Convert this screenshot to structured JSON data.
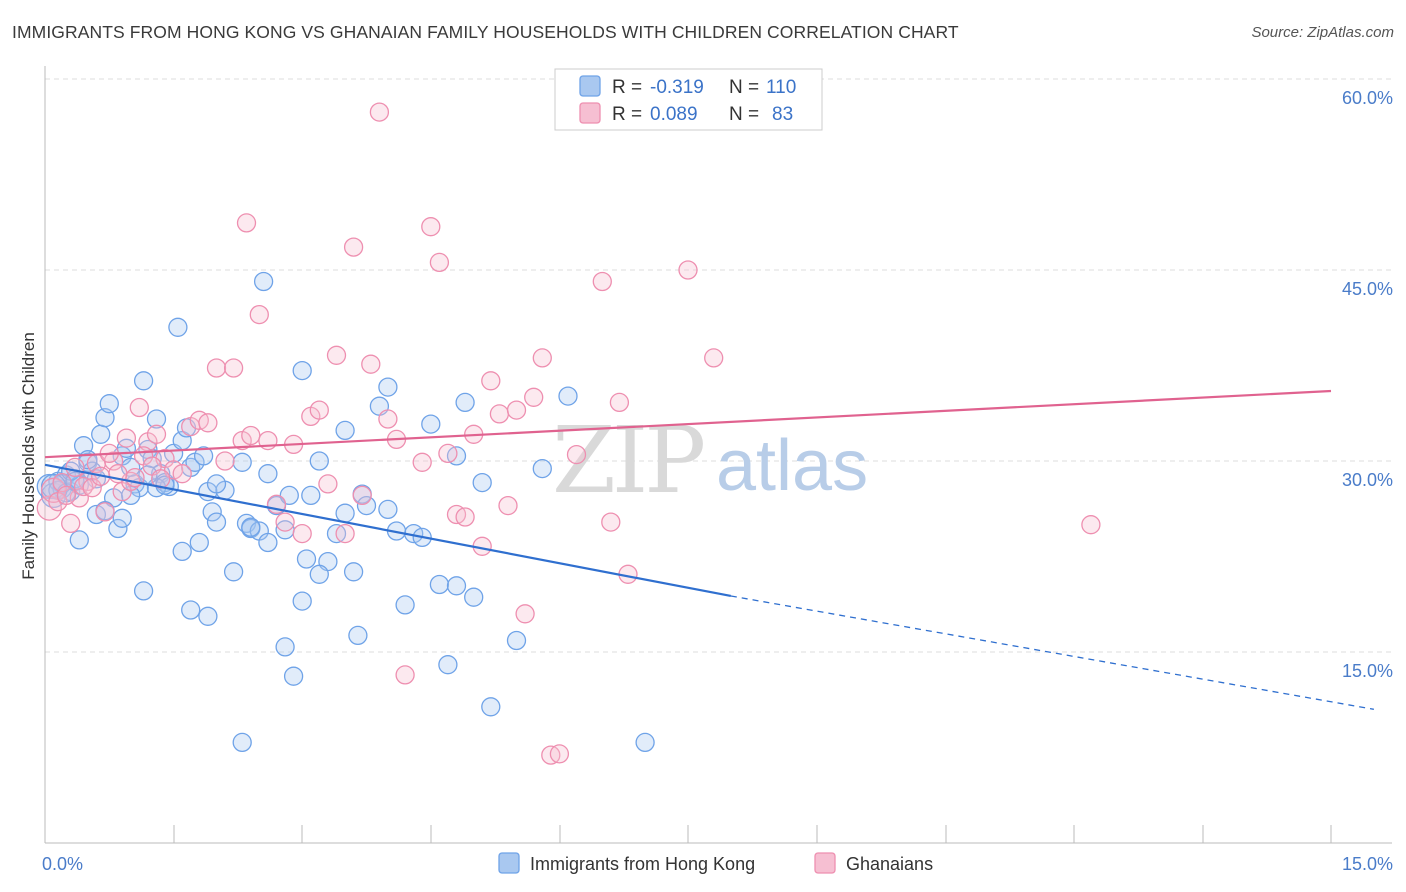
{
  "header": {
    "title": "IMMIGRANTS FROM HONG KONG VS GHANAIAN FAMILY HOUSEHOLDS WITH CHILDREN CORRELATION CHART",
    "source": "Source: ZipAtlas.com"
  },
  "watermark": {
    "zip": "ZIP",
    "atlas": "atlas"
  },
  "colors": {
    "blue": "#6fa3e8",
    "blue_fill": "#a9c8f0",
    "blue_line": "#2f6fcf",
    "pink": "#ee8fb0",
    "pink_fill": "#f6bfd2",
    "pink_line": "#e0628f",
    "grid": "#dddddd",
    "tick_label": "#4a7cc9"
  },
  "legend": {
    "rows": [
      {
        "r_label": "R =",
        "r_value": "-0.319",
        "n_label": "N =",
        "n_value": "110"
      },
      {
        "r_label": "R =",
        "r_value": "0.089",
        "n_label": "N =",
        "n_value": "83"
      }
    ]
  },
  "bottom_legend": [
    {
      "label": "Immigrants from Hong Kong"
    },
    {
      "label": "Ghanaians"
    }
  ],
  "chart_data": {
    "type": "scatter",
    "title": "IMMIGRANTS FROM HONG KONG VS GHANAIAN FAMILY HOUSEHOLDS WITH CHILDREN CORRELATION CHART",
    "xlabel": "",
    "ylabel": "Family Households with Children",
    "xlim": [
      0,
      15
    ],
    "ylim": [
      0,
      62
    ],
    "x_tick_labels": [
      "0.0%",
      "15.0%"
    ],
    "y_ticks": [
      15,
      30,
      45,
      60
    ],
    "y_tick_labels": [
      "15.0%",
      "30.0%",
      "45.0%",
      "60.0%"
    ],
    "grid": true,
    "legend_position": "top-center",
    "series": [
      {
        "name": "Immigrants from Hong Kong",
        "color": "#6fa3e8",
        "trend": {
          "x": [
            0.0,
            8.0
          ],
          "y": [
            29.7,
            19.4
          ],
          "dashed_to": [
            15.5,
            10.5
          ]
        },
        "points": [
          [
            0.05,
            28.0
          ],
          [
            0.1,
            27.3
          ],
          [
            0.15,
            28.4
          ],
          [
            0.2,
            27.8
          ],
          [
            0.25,
            28.9
          ],
          [
            0.3,
            27.6
          ],
          [
            0.35,
            28.6
          ],
          [
            0.4,
            28.1
          ],
          [
            0.45,
            31.2
          ],
          [
            0.5,
            29.9
          ],
          [
            0.55,
            29.2
          ],
          [
            0.6,
            25.8
          ],
          [
            0.65,
            32.1
          ],
          [
            0.7,
            33.4
          ],
          [
            0.75,
            34.5
          ],
          [
            0.8,
            27.1
          ],
          [
            0.85,
            24.7
          ],
          [
            0.9,
            30.4
          ],
          [
            0.95,
            31.0
          ],
          [
            1.0,
            29.5
          ],
          [
            1.05,
            28.2
          ],
          [
            1.1,
            27.9
          ],
          [
            1.15,
            36.3
          ],
          [
            1.2,
            30.9
          ],
          [
            1.25,
            30.2
          ],
          [
            1.3,
            33.3
          ],
          [
            1.35,
            29.0
          ],
          [
            1.4,
            28.3
          ],
          [
            1.45,
            28.0
          ],
          [
            1.5,
            30.6
          ],
          [
            1.55,
            40.5
          ],
          [
            1.6,
            31.6
          ],
          [
            1.65,
            32.6
          ],
          [
            1.7,
            29.5
          ],
          [
            1.75,
            29.9
          ],
          [
            1.8,
            23.6
          ],
          [
            1.85,
            30.4
          ],
          [
            1.9,
            27.6
          ],
          [
            1.95,
            26.0
          ],
          [
            2.0,
            25.2
          ],
          [
            2.1,
            27.7
          ],
          [
            2.2,
            21.3
          ],
          [
            2.3,
            29.9
          ],
          [
            2.35,
            25.1
          ],
          [
            2.4,
            24.7
          ],
          [
            2.5,
            24.5
          ],
          [
            2.55,
            44.1
          ],
          [
            2.6,
            23.6
          ],
          [
            2.7,
            26.5
          ],
          [
            2.8,
            15.4
          ],
          [
            2.85,
            27.3
          ],
          [
            2.9,
            13.1
          ],
          [
            3.0,
            19.0
          ],
          [
            3.05,
            22.3
          ],
          [
            3.1,
            27.3
          ],
          [
            3.2,
            30.0
          ],
          [
            3.3,
            22.1
          ],
          [
            3.4,
            24.3
          ],
          [
            3.5,
            32.4
          ],
          [
            3.6,
            21.3
          ],
          [
            3.65,
            16.3
          ],
          [
            3.7,
            27.4
          ],
          [
            3.75,
            26.5
          ],
          [
            3.9,
            34.3
          ],
          [
            4.0,
            35.8
          ],
          [
            4.2,
            18.7
          ],
          [
            4.3,
            24.3
          ],
          [
            4.4,
            24.0
          ],
          [
            4.5,
            32.9
          ],
          [
            4.6,
            20.3
          ],
          [
            4.7,
            14.0
          ],
          [
            4.8,
            30.4
          ],
          [
            4.9,
            34.6
          ],
          [
            5.1,
            28.3
          ],
          [
            5.2,
            10.7
          ],
          [
            5.5,
            15.9
          ],
          [
            5.8,
            29.4
          ],
          [
            6.1,
            35.1
          ],
          [
            7.0,
            7.9
          ],
          [
            2.3,
            7.9
          ],
          [
            1.9,
            17.8
          ],
          [
            1.7,
            18.3
          ],
          [
            1.6,
            22.9
          ],
          [
            1.15,
            19.8
          ],
          [
            0.4,
            23.8
          ],
          [
            2.0,
            28.2
          ],
          [
            3.0,
            37.1
          ],
          [
            2.6,
            29.0
          ],
          [
            1.3,
            27.9
          ],
          [
            0.2,
            28.2
          ],
          [
            0.15,
            27.7
          ],
          [
            0.1,
            28.0
          ],
          [
            0.3,
            29.2
          ],
          [
            0.5,
            30.1
          ],
          [
            0.25,
            27.5
          ],
          [
            4.0,
            26.2
          ],
          [
            3.2,
            21.1
          ],
          [
            2.8,
            24.6
          ],
          [
            1.2,
            28.9
          ],
          [
            0.9,
            25.5
          ],
          [
            4.1,
            24.5
          ],
          [
            5.0,
            19.3
          ],
          [
            0.6,
            28.6
          ],
          [
            1.4,
            28.1
          ],
          [
            2.4,
            24.8
          ],
          [
            3.5,
            25.9
          ],
          [
            4.8,
            20.2
          ],
          [
            0.35,
            28.4
          ],
          [
            1.0,
            27.3
          ],
          [
            0.7,
            26.1
          ]
        ]
      },
      {
        "name": "Ghanaians",
        "color": "#ee8fb0",
        "trend": {
          "x": [
            0.0,
            15.0
          ],
          "y": [
            30.3,
            35.5
          ]
        },
        "points": [
          [
            0.05,
            26.3
          ],
          [
            0.1,
            27.7
          ],
          [
            0.2,
            28.3
          ],
          [
            0.3,
            25.1
          ],
          [
            0.4,
            27.1
          ],
          [
            0.5,
            28.4
          ],
          [
            0.6,
            29.8
          ],
          [
            0.7,
            26.0
          ],
          [
            0.8,
            30.0
          ],
          [
            0.9,
            27.6
          ],
          [
            1.0,
            28.4
          ],
          [
            1.1,
            34.2
          ],
          [
            1.2,
            31.5
          ],
          [
            1.3,
            32.1
          ],
          [
            1.4,
            30.2
          ],
          [
            1.5,
            29.3
          ],
          [
            1.6,
            29.0
          ],
          [
            1.7,
            32.7
          ],
          [
            1.8,
            33.2
          ],
          [
            1.9,
            33.0
          ],
          [
            2.0,
            37.3
          ],
          [
            2.1,
            30.0
          ],
          [
            2.2,
            37.3
          ],
          [
            2.3,
            31.6
          ],
          [
            2.35,
            48.7
          ],
          [
            2.4,
            32.0
          ],
          [
            2.5,
            41.5
          ],
          [
            2.6,
            31.6
          ],
          [
            2.7,
            26.6
          ],
          [
            2.8,
            25.2
          ],
          [
            2.9,
            31.3
          ],
          [
            3.0,
            24.3
          ],
          [
            3.1,
            33.5
          ],
          [
            3.2,
            34.0
          ],
          [
            3.3,
            28.2
          ],
          [
            3.4,
            38.3
          ],
          [
            3.5,
            24.3
          ],
          [
            3.6,
            46.8
          ],
          [
            3.7,
            27.3
          ],
          [
            3.8,
            37.6
          ],
          [
            3.9,
            57.4
          ],
          [
            4.0,
            33.3
          ],
          [
            4.1,
            31.7
          ],
          [
            4.2,
            13.2
          ],
          [
            4.4,
            29.9
          ],
          [
            4.5,
            48.4
          ],
          [
            4.6,
            45.6
          ],
          [
            4.7,
            30.6
          ],
          [
            4.8,
            25.8
          ],
          [
            4.9,
            25.6
          ],
          [
            5.0,
            32.1
          ],
          [
            5.1,
            23.3
          ],
          [
            5.2,
            36.3
          ],
          [
            5.3,
            33.7
          ],
          [
            5.4,
            26.5
          ],
          [
            5.5,
            34.0
          ],
          [
            5.6,
            18.0
          ],
          [
            5.7,
            35.0
          ],
          [
            5.8,
            38.1
          ],
          [
            5.9,
            6.9
          ],
          [
            6.0,
            7.0
          ],
          [
            6.1,
            59.6
          ],
          [
            6.2,
            30.5
          ],
          [
            6.5,
            44.1
          ],
          [
            6.6,
            25.2
          ],
          [
            6.7,
            34.6
          ],
          [
            6.8,
            21.1
          ],
          [
            7.5,
            45.0
          ],
          [
            7.8,
            38.1
          ],
          [
            12.2,
            25.0
          ],
          [
            0.15,
            26.8
          ],
          [
            0.25,
            27.3
          ],
          [
            0.35,
            29.5
          ],
          [
            0.45,
            28.0
          ],
          [
            0.55,
            27.9
          ],
          [
            0.65,
            28.8
          ],
          [
            0.75,
            30.6
          ],
          [
            0.85,
            29.0
          ],
          [
            0.95,
            31.8
          ],
          [
            1.05,
            28.7
          ],
          [
            1.15,
            30.4
          ],
          [
            1.25,
            29.6
          ],
          [
            1.35,
            28.6
          ]
        ]
      }
    ]
  }
}
